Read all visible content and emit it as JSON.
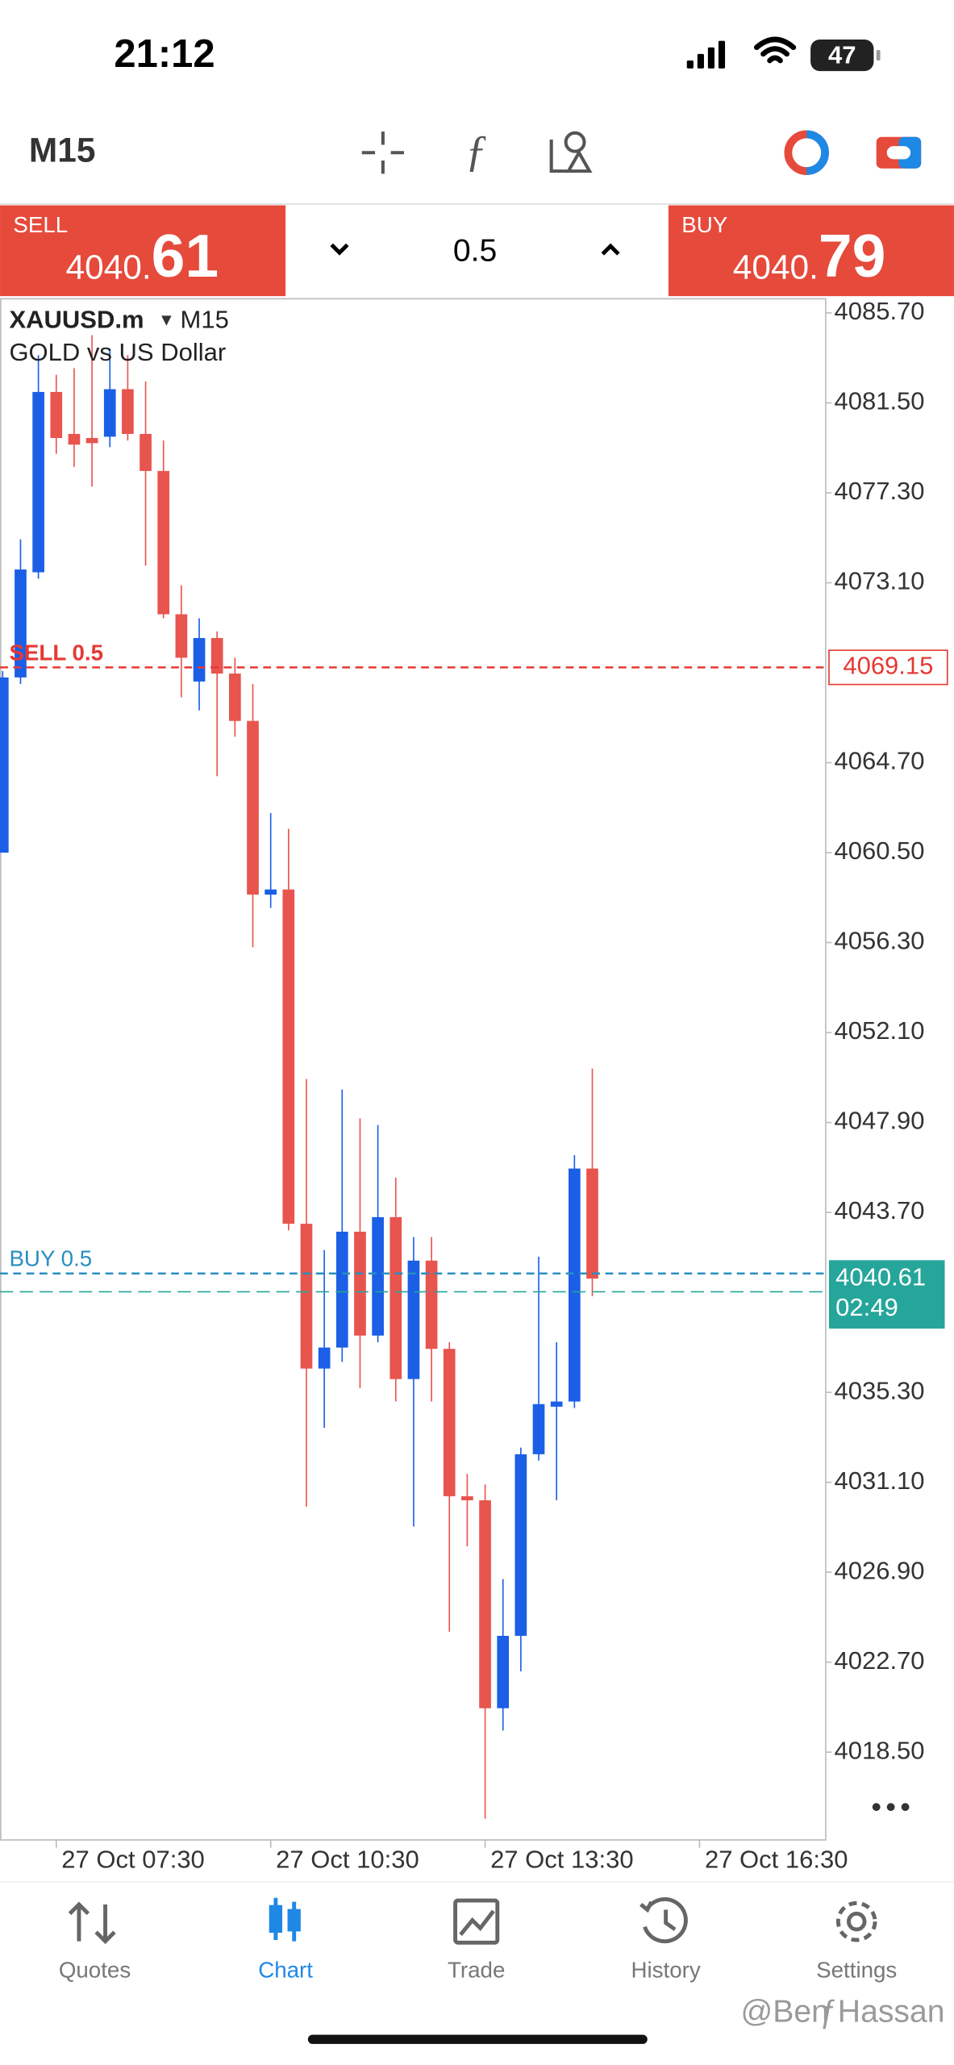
{
  "status_bar": {
    "time": "21:12",
    "battery": "47"
  },
  "toolbar": {
    "timeframe": "M15"
  },
  "trade_panel": {
    "sell_label": "SELL",
    "sell_price_main": "4040.",
    "sell_price_big": "61",
    "volume": "0.5",
    "buy_label": "BUY",
    "buy_price_main": "4040.",
    "buy_price_big": "79"
  },
  "chart_data": {
    "type": "candlestick",
    "title": "XAUUSD.m",
    "timeframe": "M15",
    "subtitle": "GOLD vs US Dollar",
    "open": [
      4060.5,
      4068.68,
      4073.59,
      4082.01,
      4080.05,
      4079.86,
      4079.92,
      4082.14,
      4080.05,
      4078.32,
      4071.63,
      4068.49,
      4070.52,
      4068.86,
      4066.65,
      4058.54,
      4058.78,
      4043.17,
      4036.41,
      4037.39,
      4042.8,
      4037.95,
      4043.48,
      4035.92,
      4041.45,
      4037.33,
      4030.45,
      4030.26,
      4020.55,
      4023.93,
      4032.41,
      4034.63,
      4034.87,
      4045.75
    ],
    "high": [
      4068.98,
      4075.13,
      4083.73,
      4082.81,
      4083.12,
      4084.66,
      4084.04,
      4083.73,
      4082.5,
      4079.74,
      4072.98,
      4071.44,
      4070.83,
      4069.6,
      4068.37,
      4062.35,
      4061.61,
      4049.93,
      4041.94,
      4049.44,
      4048.09,
      4047.78,
      4045.32,
      4042.55,
      4042.55,
      4037.64,
      4031.49,
      4031.0,
      4026.58,
      4032.72,
      4041.63,
      4037.64,
      4046.37,
      4050.42
    ],
    "low": [
      4060.5,
      4068.37,
      4073.29,
      4079.12,
      4078.51,
      4077.59,
      4079.43,
      4079.74,
      4073.9,
      4071.44,
      4067.75,
      4067.14,
      4064.07,
      4065.91,
      4056.08,
      4057.92,
      4042.86,
      4029.96,
      4033.64,
      4036.72,
      4035.49,
      4037.64,
      4034.87,
      4029.03,
      4034.87,
      4024.12,
      4028.11,
      4015.39,
      4019.51,
      4022.27,
      4032.11,
      4030.26,
      4034.57,
      4039.79
    ],
    "close": [
      4068.68,
      4073.72,
      4082.01,
      4079.86,
      4079.55,
      4079.62,
      4082.14,
      4080.05,
      4078.32,
      4071.63,
      4069.6,
      4070.52,
      4068.86,
      4066.65,
      4058.54,
      4058.78,
      4043.17,
      4036.41,
      4037.39,
      4042.8,
      4037.95,
      4043.48,
      4035.92,
      4041.45,
      4037.33,
      4030.45,
      4030.26,
      4020.55,
      4023.93,
      4032.41,
      4034.75,
      4034.87,
      4045.75,
      4040.61
    ],
    "up_color": "#1a5fe6",
    "down_color": "#e8544e",
    "ylim": [
      4014.4,
      4086.3
    ],
    "yticks": [
      {
        "value": 4085.7,
        "label": "4085.70"
      },
      {
        "value": 4081.5,
        "label": "4081.50"
      },
      {
        "value": 4077.3,
        "label": "4077.30"
      },
      {
        "value": 4073.1,
        "label": "4073.10"
      },
      {
        "value": 4064.7,
        "label": "4064.70"
      },
      {
        "value": 4060.5,
        "label": "4060.50"
      },
      {
        "value": 4056.3,
        "label": "4056.30"
      },
      {
        "value": 4052.1,
        "label": "4052.10"
      },
      {
        "value": 4047.9,
        "label": "4047.90"
      },
      {
        "value": 4043.7,
        "label": "4043.70"
      },
      {
        "value": 4035.3,
        "label": "4035.30"
      },
      {
        "value": 4031.1,
        "label": "4031.10"
      },
      {
        "value": 4026.9,
        "label": "4026.90"
      },
      {
        "value": 4022.7,
        "label": "4022.70"
      },
      {
        "value": 4018.5,
        "label": "4018.50"
      }
    ],
    "x_labels": [
      "27 Oct 07:30",
      "27 Oct 10:30",
      "27 Oct 13:30",
      "27 Oct 16:30"
    ],
    "orders": [
      {
        "label": "SELL 0.5",
        "price": 4069.15,
        "color": "#e53935"
      },
      {
        "label": "BUY 0.5",
        "price": 4040.85,
        "color": "#2a8fbf"
      }
    ],
    "bid": 4040.61,
    "bid_timer": "02:49",
    "bid_color": "#26a69a"
  },
  "tab_bar": {
    "tabs": [
      "Quotes",
      "Chart",
      "Trade",
      "History",
      "Settings"
    ],
    "active": 1,
    "active_color": "#1e88e5"
  },
  "watermark": "@Ben Hassan"
}
